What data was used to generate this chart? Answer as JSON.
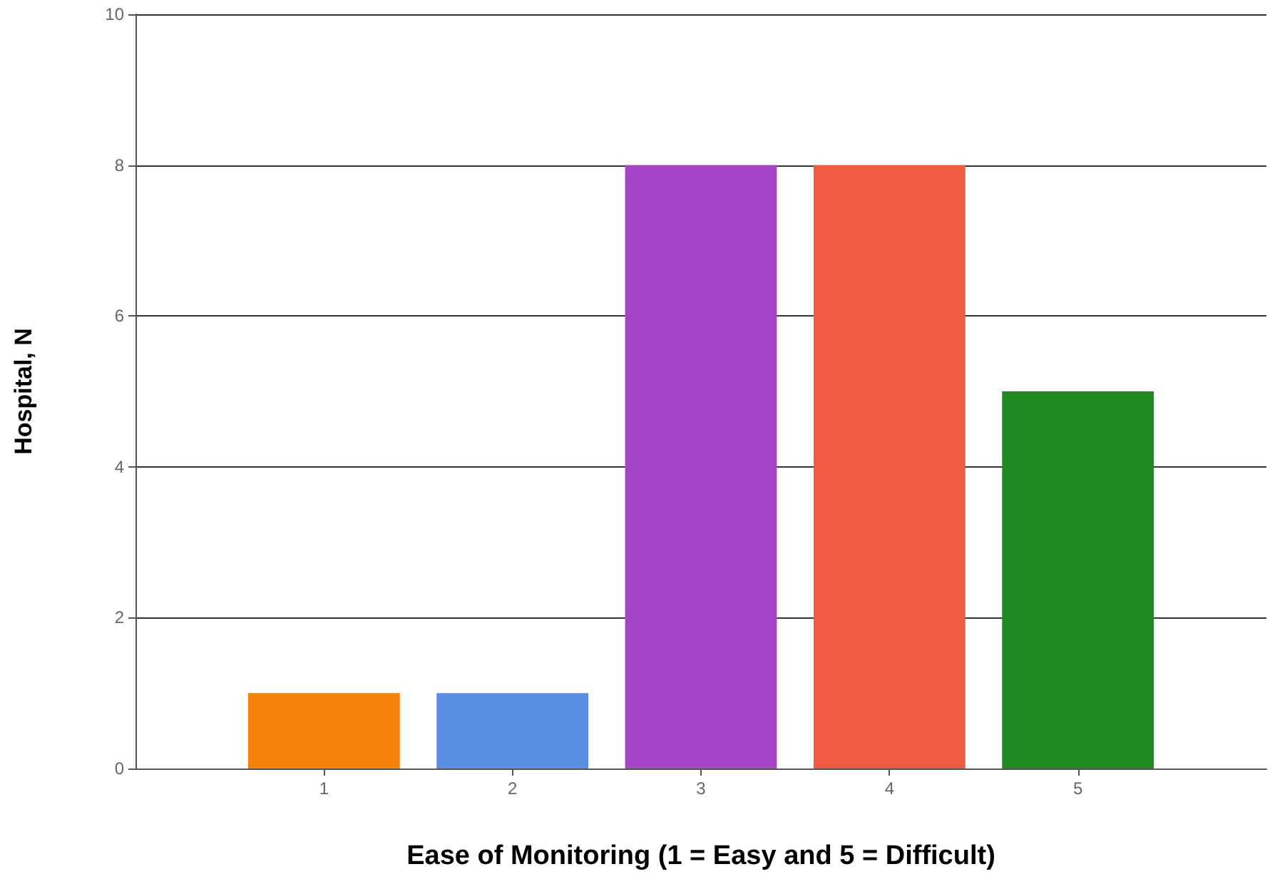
{
  "chart_data": {
    "type": "bar",
    "xlabel": "Ease of Monitoring (1 = Easy and 5 = Difficult)",
    "ylabel": "Hospital, N",
    "x": [
      1,
      2,
      3,
      4,
      5
    ],
    "values": [
      1,
      1,
      8,
      8,
      5
    ],
    "colors": [
      "#f5820a",
      "#5a8ee0",
      "#a646c6",
      "#f05c42",
      "#1f8a1f"
    ],
    "xlim": [
      0,
      6
    ],
    "xticks": [
      1,
      2,
      3,
      4,
      5
    ],
    "ylim": [
      0,
      10
    ],
    "yticks": [
      0,
      2,
      4,
      6,
      8,
      10
    ],
    "grid": "y"
  }
}
